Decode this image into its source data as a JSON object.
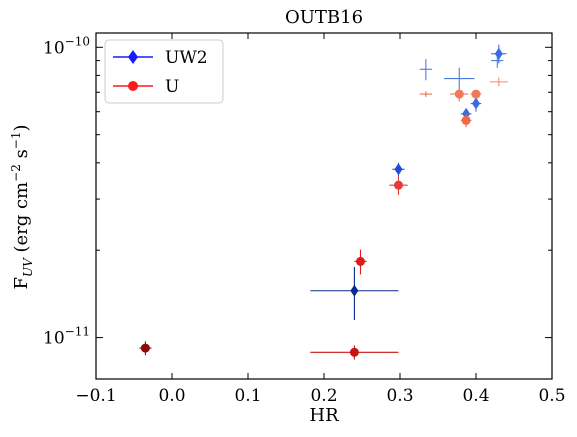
{
  "chart_data": {
    "type": "scatter",
    "title": "OUTB16",
    "xlabel": "HR",
    "ylabel_main": "F",
    "ylabel_sub": "UV",
    "ylabel_units_pre": " (erg cm",
    "ylabel_exp1": "−2",
    "ylabel_mid": " s",
    "ylabel_exp2": "−1",
    "ylabel_close": ")",
    "xlim": [
      -0.1,
      0.5
    ],
    "ylim": [
      7.2e-12,
      1.12e-10
    ],
    "yscale": "log",
    "x_ticks": [
      {
        "value": -0.1,
        "label": "−0.1"
      },
      {
        "value": 0.0,
        "label": "0.0"
      },
      {
        "value": 0.1,
        "label": "0.1"
      },
      {
        "value": 0.2,
        "label": "0.2"
      },
      {
        "value": 0.3,
        "label": "0.3"
      },
      {
        "value": 0.4,
        "label": "0.4"
      },
      {
        "value": 0.5,
        "label": "0.5"
      }
    ],
    "y_major_ticks": [
      {
        "value": 1e-11,
        "mant": "10",
        "exp": "−11"
      },
      {
        "value": 1e-10,
        "mant": "10",
        "exp": "−10"
      }
    ],
    "y_minor_ticks": [
      2e-11,
      3e-11,
      4e-11,
      5e-11,
      6e-11,
      7e-11,
      8e-11,
      9e-11
    ],
    "legend": {
      "position": "upper-left"
    },
    "series": [
      {
        "name": "UW2",
        "color": "#1a1aff",
        "marker": "diamond",
        "points": [
          {
            "x": 0.24,
            "y": 1.45e-11,
            "xerr": 0.058,
            "yerr": 3e-12,
            "marker": true,
            "color": "#0d2a8a"
          },
          {
            "x": 0.298,
            "y": 3.8e-11,
            "xerr": 0.008,
            "yerr": 2e-12,
            "marker": true,
            "color": "#1a4fd6"
          },
          {
            "x": 0.334,
            "y": 8.4e-11,
            "xerr": 0.008,
            "yerr": 7e-12,
            "marker": false,
            "color": "#4a7be0"
          },
          {
            "x": 0.378,
            "y": 7.8e-11,
            "xerr": 0.02,
            "yerr": 7e-12,
            "marker": false,
            "color": "#4a7be0"
          },
          {
            "x": 0.387,
            "y": 5.9e-11,
            "xerr": 0.007,
            "yerr": 2e-12,
            "marker": true,
            "color": "#3a6be0"
          },
          {
            "x": 0.4,
            "y": 6.4e-11,
            "xerr": 0.007,
            "yerr": 4e-12,
            "marker": true,
            "color": "#3a6be0"
          },
          {
            "x": 0.428,
            "y": 9e-11,
            "xerr": 0.008,
            "yerr": 5e-12,
            "marker": false,
            "color": "#4a7be0"
          },
          {
            "x": 0.43,
            "y": 9.5e-11,
            "xerr": 0.01,
            "yerr": 7e-12,
            "marker": true,
            "color": "#3a6be0"
          }
        ]
      },
      {
        "name": "U",
        "color": "#ff1a1a",
        "marker": "circle",
        "points": [
          {
            "x": -0.035,
            "y": 9.2e-12,
            "xerr": 0.008,
            "yerr": 5e-13,
            "marker": true,
            "color": "#8b0a0a"
          },
          {
            "x": 0.24,
            "y": 8.9e-12,
            "xerr": 0.058,
            "yerr": 5e-13,
            "marker": true,
            "color": "#c81414"
          },
          {
            "x": 0.248,
            "y": 1.83e-11,
            "xerr": 0.008,
            "yerr": 1.8e-12,
            "marker": true,
            "color": "#e01a1a"
          },
          {
            "x": 0.298,
            "y": 3.35e-11,
            "xerr": 0.012,
            "yerr": 2.5e-12,
            "marker": true,
            "color": "#e63a3a"
          },
          {
            "x": 0.334,
            "y": 6.9e-11,
            "xerr": 0.008,
            "yerr": 1.5e-12,
            "marker": false,
            "color": "#ee6a4a"
          },
          {
            "x": 0.378,
            "y": 6.9e-11,
            "xerr": 0.012,
            "yerr": 4e-12,
            "marker": true,
            "color": "#f07a5a"
          },
          {
            "x": 0.387,
            "y": 5.6e-11,
            "xerr": 0.007,
            "yerr": 3e-12,
            "marker": true,
            "color": "#f06a4a"
          },
          {
            "x": 0.4,
            "y": 6.9e-11,
            "xerr": 0.007,
            "yerr": 2e-12,
            "marker": true,
            "color": "#f07a5a"
          },
          {
            "x": 0.43,
            "y": 7.6e-11,
            "xerr": 0.012,
            "yerr": 2.5e-12,
            "marker": false,
            "color": "#f28a6a"
          }
        ]
      }
    ]
  }
}
